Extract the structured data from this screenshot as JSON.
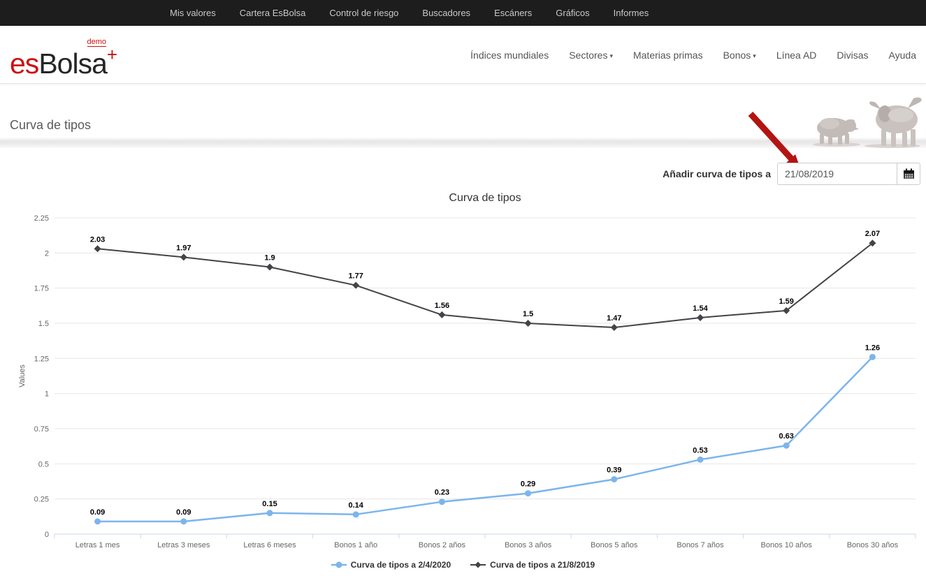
{
  "topnav": {
    "items": [
      "Mis valores",
      "Cartera EsBolsa",
      "Control de riesgo",
      "Buscadores",
      "Escáners",
      "Gráficos",
      "Informes"
    ]
  },
  "brand": {
    "prefix": "es",
    "main": "Bolsa",
    "badge": "demo",
    "plus": "+"
  },
  "subnav": {
    "caret_glyph": "▾",
    "items": [
      {
        "label": "Índices mundiales",
        "dropdown": false
      },
      {
        "label": "Sectores",
        "dropdown": true
      },
      {
        "label": "Materias primas",
        "dropdown": false
      },
      {
        "label": "Bonos",
        "dropdown": true
      },
      {
        "label": "Línea AD",
        "dropdown": false
      },
      {
        "label": "Divisas",
        "dropdown": false
      },
      {
        "label": "Ayuda",
        "dropdown": false
      }
    ]
  },
  "page": {
    "title": "Curva de tipos"
  },
  "toolbar": {
    "label": "Añadir curva de tipos a",
    "date_value": "21/08/2019",
    "calendar_icon": "calendar-grid",
    "arrow_icon": "red-annotation-arrow"
  },
  "colors": {
    "brand_red": "#cc1111",
    "arrow_red": "#b31412",
    "series_blue": "#7cb5ec",
    "series_dark": "#434348",
    "topbar_bg": "#1d1d1d"
  },
  "chart_data": {
    "type": "line",
    "title": "Curva de tipos",
    "ylabel": "Values",
    "xlabel": "",
    "ylim": [
      0,
      2.25
    ],
    "yticks": [
      0,
      0.25,
      0.5,
      0.75,
      1,
      1.25,
      1.5,
      1.75,
      2,
      2.25
    ],
    "grid": true,
    "legend_position": "bottom",
    "categories": [
      "Letras 1 mes",
      "Letras 3 meses",
      "Letras 6 meses",
      "Bonos 1 año",
      "Bonos 2 años",
      "Bonos 3 años",
      "Bonos 5 años",
      "Bonos 7 años",
      "Bonos 10 años",
      "Bonos 30 años"
    ],
    "series": [
      {
        "name": "Curva de tipos a 2/4/2020",
        "color": "#7cb5ec",
        "marker": "circle",
        "values": [
          0.09,
          0.09,
          0.15,
          0.14,
          0.23,
          0.29,
          0.39,
          0.53,
          0.63,
          1.26
        ]
      },
      {
        "name": "Curva de tipos a 21/8/2019",
        "color": "#434348",
        "marker": "diamond",
        "values": [
          2.03,
          1.97,
          1.9,
          1.77,
          1.56,
          1.5,
          1.47,
          1.54,
          1.59,
          2.07
        ]
      }
    ]
  }
}
